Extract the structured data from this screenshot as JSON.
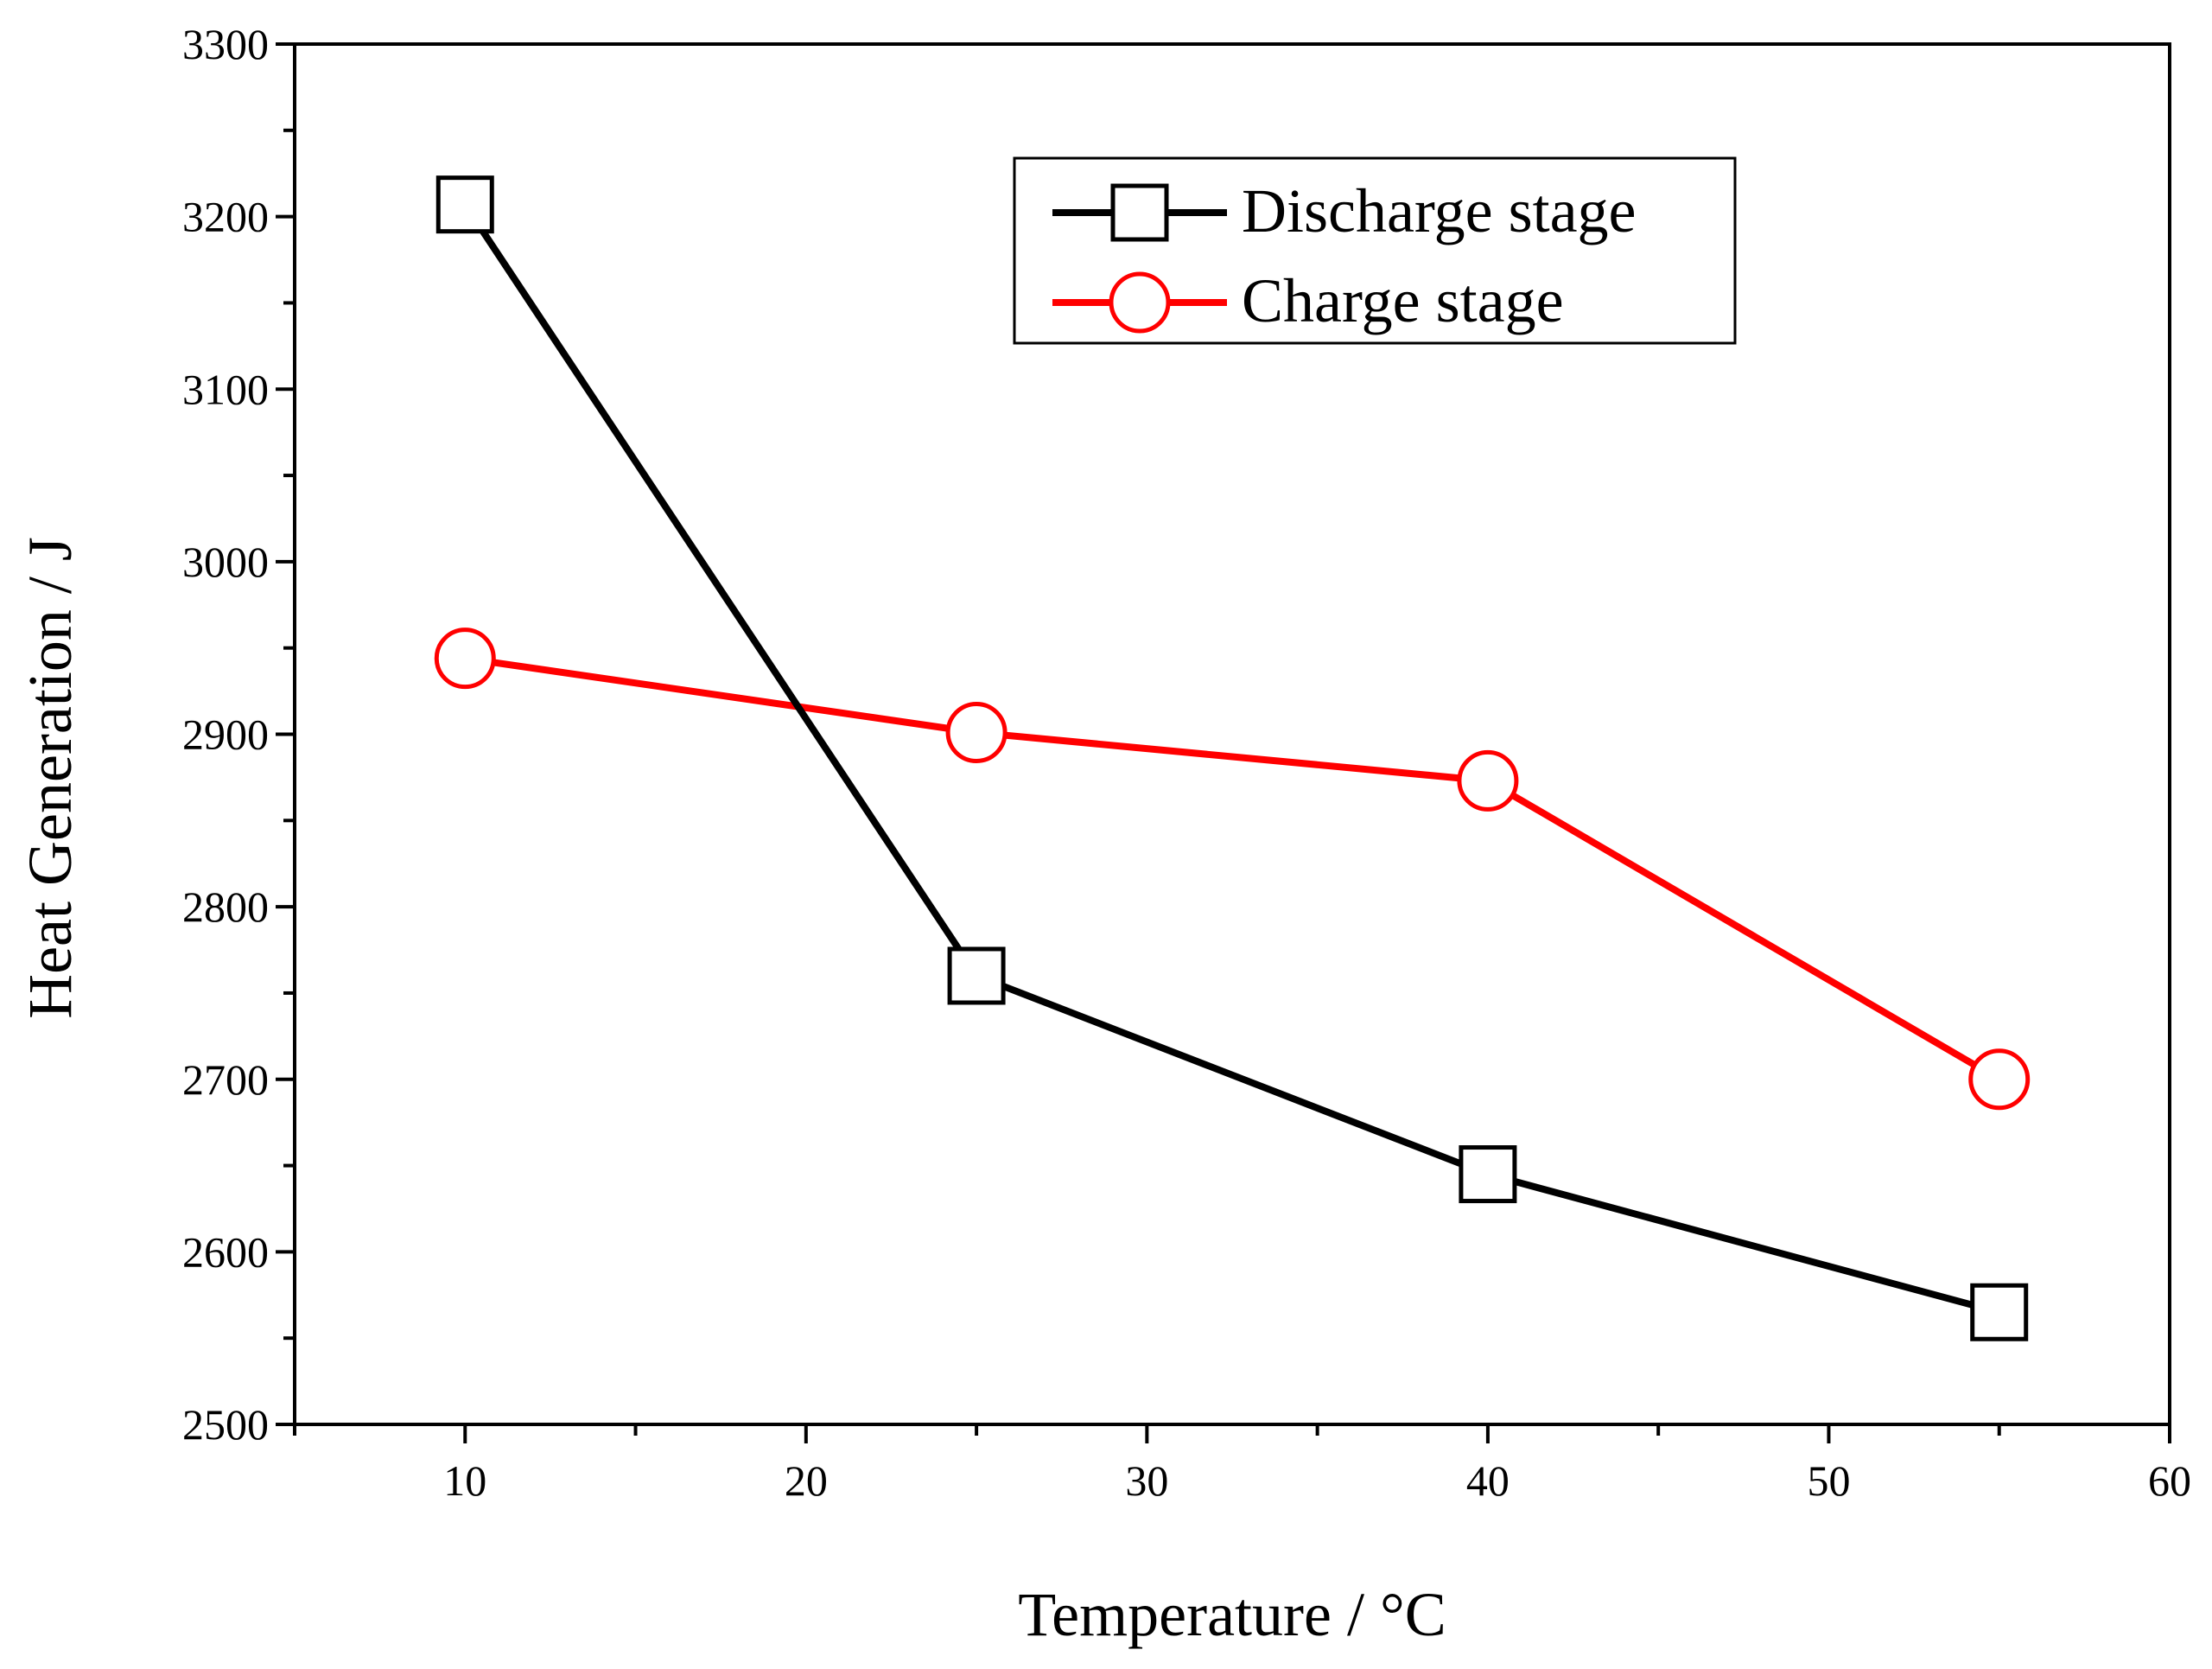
{
  "chart_data": {
    "type": "line",
    "title": "",
    "xlabel": "Temperature / °C",
    "ylabel": "Heat Generation / J",
    "xlim": [
      5,
      60
    ],
    "ylim": [
      2500,
      3300
    ],
    "x_ticks": [
      10,
      20,
      30,
      40,
      50,
      60
    ],
    "y_ticks": [
      2500,
      2600,
      2700,
      2800,
      2900,
      3000,
      3100,
      3200,
      3300
    ],
    "x_tick_labels": [
      "10",
      "20",
      "30",
      "40",
      "50",
      "60"
    ],
    "y_tick_labels": [
      "2500",
      "2600",
      "2700",
      "2800",
      "2900",
      "3000",
      "3100",
      "3200",
      "3300"
    ],
    "grid": false,
    "legend_position": "top-right",
    "series": [
      {
        "name": "Discharge stage",
        "color": "#000000",
        "marker": "square",
        "x": [
          10,
          25,
          40,
          55
        ],
        "values": [
          3207,
          2760,
          2645,
          2565
        ]
      },
      {
        "name": "Charge stage",
        "color": "#ff0000",
        "marker": "circle",
        "x": [
          10,
          25,
          40,
          55
        ],
        "values": [
          2944,
          2901,
          2873,
          2700
        ]
      }
    ]
  }
}
